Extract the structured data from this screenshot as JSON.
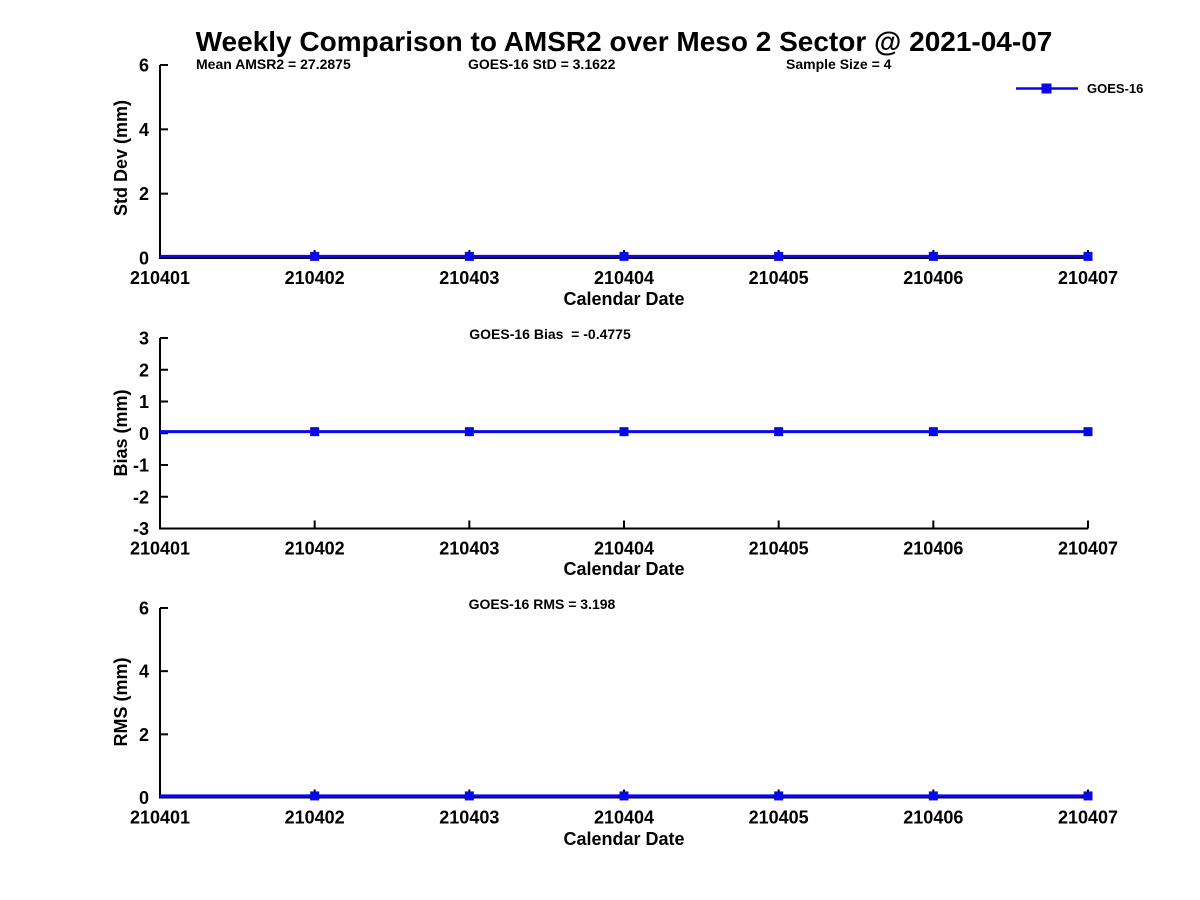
{
  "title": "Weekly Comparison to AMSR2 over Meso 2 Sector @ 2021-04-07",
  "colors": {
    "line": "#0808E8",
    "axis": "#000000",
    "text": "#000000"
  },
  "legend": {
    "label": "GOES-16",
    "position": "top-right",
    "marker": "filled-square"
  },
  "chart_data": [
    {
      "type": "line",
      "name": "std-dev-vs-date",
      "ylabel": "Std Dev (mm)",
      "xlabel": "Calendar Date",
      "ylim": [
        0,
        6
      ],
      "yticks": [
        0,
        2,
        4,
        6
      ],
      "x": [
        210401,
        210402,
        210403,
        210404,
        210405,
        210406,
        210407
      ],
      "xticklabels": [
        "210401",
        "210402",
        "210403",
        "210404",
        "210405",
        "210406",
        "210407"
      ],
      "series": [
        {
          "name": "GOES-16",
          "values": [
            0.05,
            0.05,
            0.05,
            0.05,
            0.05,
            0.05,
            0.05
          ],
          "marker": "square",
          "marker_x": [
            210402,
            210403,
            210404,
            210405,
            210406,
            210407
          ]
        }
      ],
      "annotations": [
        {
          "text": "Mean AMSR2 = 27.2875"
        },
        {
          "text": "GOES-16 StD = 3.1622"
        },
        {
          "text": "Sample Size = 4"
        }
      ],
      "grid": false
    },
    {
      "type": "line",
      "name": "bias-vs-date",
      "ylabel": "Bias (mm)",
      "xlabel": "Calendar Date",
      "ylim": [
        -3,
        3
      ],
      "yticks": [
        3,
        2,
        1,
        0,
        -1,
        -2,
        -3
      ],
      "x": [
        210401,
        210402,
        210403,
        210404,
        210405,
        210406,
        210407
      ],
      "xticklabels": [
        "210401",
        "210402",
        "210403",
        "210404",
        "210405",
        "210406",
        "210407"
      ],
      "series": [
        {
          "name": "GOES-16",
          "values": [
            0.05,
            0.05,
            0.05,
            0.05,
            0.05,
            0.05,
            0.05
          ],
          "marker": "square",
          "marker_x": [
            210402,
            210403,
            210404,
            210405,
            210406,
            210407
          ]
        }
      ],
      "annotations": [
        {
          "text": "GOES-16 Bias  = -0.4775"
        }
      ],
      "grid": false
    },
    {
      "type": "line",
      "name": "rms-vs-date",
      "ylabel": "RMS (mm)",
      "xlabel": "Calendar Date",
      "ylim": [
        0,
        6
      ],
      "yticks": [
        0,
        2,
        4,
        6
      ],
      "x": [
        210401,
        210402,
        210403,
        210404,
        210405,
        210406,
        210407
      ],
      "xticklabels": [
        "210401",
        "210402",
        "210403",
        "210404",
        "210405",
        "210406",
        "210407"
      ],
      "series": [
        {
          "name": "GOES-16",
          "values": [
            0.05,
            0.05,
            0.05,
            0.05,
            0.05,
            0.05,
            0.05
          ],
          "marker": "square",
          "marker_x": [
            210402,
            210403,
            210404,
            210405,
            210406,
            210407
          ]
        }
      ],
      "annotations": [
        {
          "text": "GOES-16 RMS = 3.198"
        }
      ],
      "grid": false
    }
  ]
}
